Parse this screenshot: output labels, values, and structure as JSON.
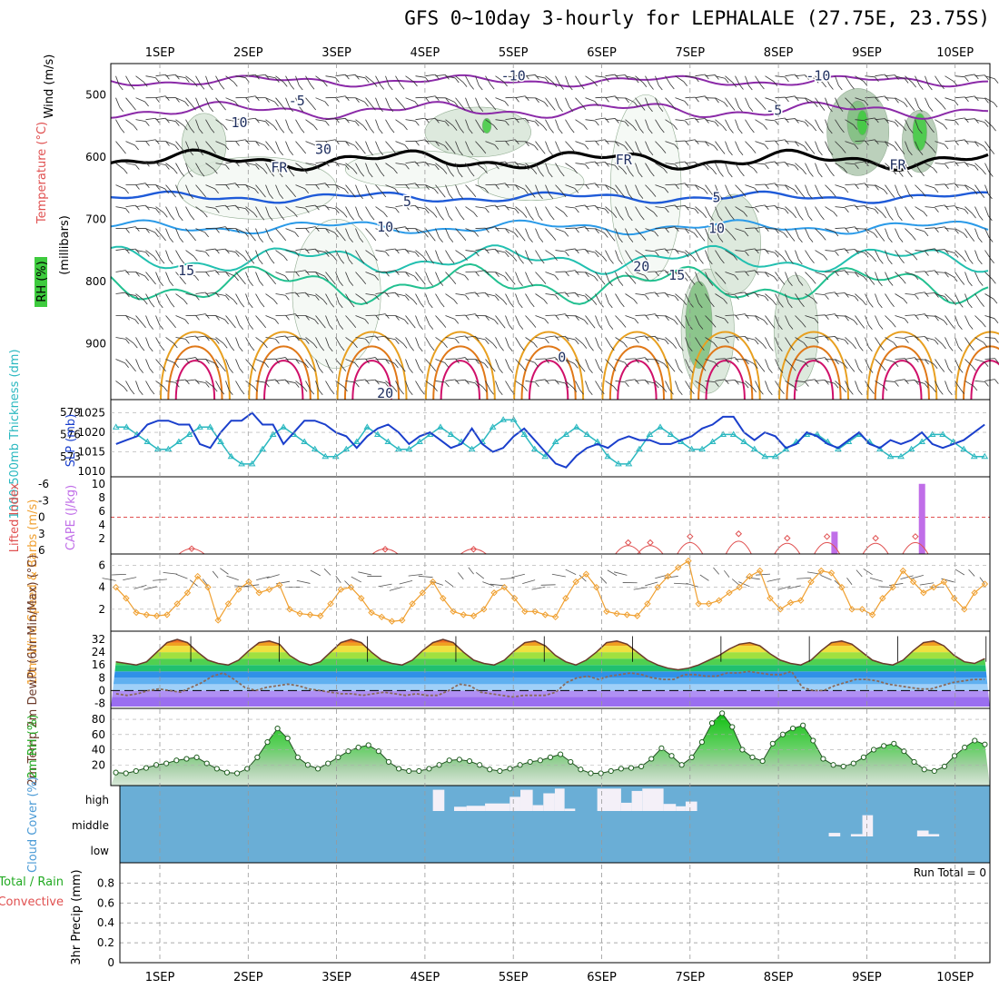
{
  "title": "GFS 0~10day 3-hourly for LEPHALALE (27.75E, 23.75S)",
  "dates": [
    "1SEP",
    "2SEP",
    "3SEP",
    "4SEP",
    "5SEP",
    "6SEP",
    "7SEP",
    "8SEP",
    "9SEP",
    "10SEP"
  ],
  "colors": {
    "sep_line": "#000000",
    "grid": "#aaaaaa",
    "slp": "#1a3fcc",
    "thickness": "#2ab8c0",
    "lifted": "#e05050",
    "cape": "#c06ee8",
    "wind10": "#f0a030",
    "rh": "#22aa22",
    "cloud_bg": "#6aaed6",
    "cloud_bar": "#f4f0f8",
    "temp_line": "#6b3a2a",
    "dewpt": "#8a6a5a"
  },
  "chart_data": [
    {
      "type": "contour",
      "panel": "upper-air",
      "ylabel_parts": [
        "Wind (m/s)",
        "Temperature (°C)",
        "(millibars)"
      ],
      "rh_label": "RH (%)",
      "yticks": [
        500,
        600,
        700,
        800,
        900
      ],
      "ylim": [
        1000,
        450
      ],
      "contour_labels": [
        {
          "text": "-10",
          "x": 4.0,
          "p": 470
        },
        {
          "text": "-10",
          "x": 7.45,
          "p": 470
        },
        {
          "text": "-5",
          "x": 1.55,
          "p": 510
        },
        {
          "text": "-5",
          "x": 6.95,
          "p": 525
        },
        {
          "text": "FR",
          "x": 1.35,
          "p": 617
        },
        {
          "text": "FR",
          "x": 5.25,
          "p": 605
        },
        {
          "text": "FR",
          "x": 8.35,
          "p": 613
        },
        {
          "text": "5",
          "x": 2.8,
          "p": 672
        },
        {
          "text": "5",
          "x": 6.3,
          "p": 665
        },
        {
          "text": "10",
          "x": 2.55,
          "p": 713
        },
        {
          "text": "10",
          "x": 6.3,
          "p": 715
        },
        {
          "text": "15",
          "x": 0.3,
          "p": 783
        },
        {
          "text": "15",
          "x": 5.85,
          "p": 790
        },
        {
          "text": "20",
          "x": 5.45,
          "p": 776
        },
        {
          "text": "20",
          "x": 2.55,
          "p": 980
        },
        {
          "text": "0",
          "x": 4.55,
          "p": 922
        },
        {
          "text": "10",
          "x": 0.9,
          "p": 545
        },
        {
          "text": "30",
          "x": 1.85,
          "p": 588
        }
      ],
      "rh_shades": [
        "#f4f8f4",
        "#d8e6d8",
        "#b0c8b0",
        "#7fbf7f",
        "#3ecb3e"
      ]
    },
    {
      "type": "line",
      "panel": "slp-thickness",
      "left_label": "1000-500mb Thickness (dm)",
      "right_label": "SLP (mb)",
      "left_ticks": [
        573,
        576,
        579
      ],
      "right_ticks": [
        1010,
        1015,
        1020,
        1025
      ],
      "series": [
        {
          "name": "SLP",
          "axis": "right",
          "values": [
            1017,
            1018,
            1019,
            1022,
            1023,
            1023,
            1022,
            1022,
            1017,
            1016,
            1020,
            1023,
            1023,
            1025,
            1022,
            1022,
            1017,
            1020,
            1023,
            1023,
            1022,
            1020,
            1019,
            1016,
            1019,
            1021,
            1022,
            1020,
            1017,
            1019,
            1020,
            1018,
            1016,
            1017,
            1021,
            1017,
            1015,
            1016,
            1019,
            1021,
            1018,
            1015,
            1012,
            1011,
            1014,
            1016,
            1017,
            1016,
            1018,
            1019,
            1018,
            1018,
            1017,
            1017,
            1018,
            1019,
            1021,
            1022,
            1024,
            1024,
            1020,
            1018,
            1020,
            1019,
            1016,
            1017,
            1020,
            1019,
            1017,
            1016,
            1018,
            1020,
            1017,
            1016,
            1018,
            1017,
            1018,
            1020,
            1017,
            1016,
            1017,
            1018,
            1020,
            1022
          ]
        },
        {
          "name": "Thickness",
          "axis": "left",
          "values": [
            577,
            577,
            576,
            575,
            574,
            574,
            575,
            576,
            577,
            577,
            575,
            573,
            572,
            572,
            574,
            576,
            577,
            576,
            575,
            574,
            573,
            573,
            574,
            575,
            577,
            576,
            575,
            574,
            574,
            575,
            576,
            577,
            576,
            575,
            574,
            575,
            577,
            578,
            578,
            576,
            574,
            573,
            575,
            576,
            577,
            576,
            575,
            573,
            572,
            572,
            574,
            576,
            577,
            576,
            575,
            574,
            574,
            575,
            576,
            576,
            575,
            574,
            573,
            573,
            574,
            575,
            576,
            576,
            575,
            574,
            575,
            576,
            575,
            574,
            573,
            573,
            574,
            575,
            576,
            576,
            575,
            574,
            573,
            573
          ]
        }
      ]
    },
    {
      "type": "bar",
      "panel": "lifted-cape",
      "left_label": "Lifted Index",
      "right_label": "CAPE (J/kg)",
      "left_ticks": [
        "-6",
        "-3",
        "0",
        "3",
        "6"
      ],
      "right_ticks": [
        2,
        4,
        6,
        8,
        10
      ],
      "cape_bars": [
        {
          "x": 8.63,
          "value": 3
        },
        {
          "x": 9.62,
          "value": 10
        }
      ],
      "lifted_index": [
        {
          "x": 1.36,
          "value": 5.7
        },
        {
          "x": 3.55,
          "value": 5.8
        },
        {
          "x": 4.55,
          "value": 5.8
        },
        {
          "x": 6.3,
          "value": 4.6
        },
        {
          "x": 6.55,
          "value": 4.6
        },
        {
          "x": 7.0,
          "value": 3.5
        },
        {
          "x": 7.55,
          "value": 3.0
        },
        {
          "x": 8.1,
          "value": 3.8
        },
        {
          "x": 8.55,
          "value": 3.5
        },
        {
          "x": 9.1,
          "value": 3.8
        },
        {
          "x": 9.55,
          "value": 3.5
        }
      ]
    },
    {
      "type": "line",
      "panel": "wind10m",
      "ylabel": "10m Wind Speed & Barbs (m/s)",
      "yticks": [
        2,
        4,
        6
      ],
      "values": [
        4.0,
        3.0,
        1.7,
        1.5,
        1.4,
        1.5,
        2.5,
        3.5,
        5.0,
        4.0,
        1.0,
        2.5,
        3.8,
        4.5,
        3.5,
        3.8,
        4.2,
        2.0,
        1.6,
        1.5,
        1.4,
        2.5,
        3.8,
        4.0,
        3.0,
        1.7,
        1.3,
        0.9,
        1.0,
        2.5,
        3.5,
        4.5,
        3.0,
        1.8,
        1.5,
        1.4,
        2.0,
        3.5,
        4.0,
        3.0,
        1.8,
        1.8,
        1.5,
        1.3,
        3.0,
        4.5,
        5.2,
        4.0,
        1.8,
        1.6,
        1.5,
        1.4,
        2.5,
        4.0,
        5.0,
        5.8,
        6.4,
        2.5,
        2.5,
        2.8,
        3.5,
        4.0,
        5.0,
        5.5,
        3.0,
        2.0,
        2.6,
        2.8,
        4.5,
        5.5,
        5.3,
        4.0,
        2.0,
        2.0,
        1.5,
        3.0,
        4.0,
        5.5,
        4.5,
        3.5,
        4.0,
        4.5,
        3.0,
        2.0,
        3.5,
        4.3
      ]
    },
    {
      "type": "area",
      "panel": "temp",
      "ylabel": "2m Temp 2m DewPt (6hr Min/Max) (°C)",
      "yticks": [
        -8,
        0,
        8,
        16,
        24,
        32
      ],
      "temp": [
        18,
        17,
        16,
        18,
        24,
        30,
        32,
        30,
        24,
        19,
        17,
        16,
        19,
        25,
        30,
        31,
        29,
        22,
        18,
        16,
        18,
        24,
        30,
        32,
        30,
        24,
        19,
        17,
        16,
        19,
        25,
        30,
        32,
        30,
        24,
        19,
        17,
        16,
        19,
        25,
        30,
        31,
        28,
        22,
        18,
        16,
        19,
        24,
        30,
        31,
        29,
        24,
        19,
        16,
        14,
        13,
        14,
        16,
        19,
        22,
        26,
        29,
        30,
        28,
        23,
        19,
        17,
        16,
        19,
        25,
        30,
        31,
        29,
        24,
        19,
        17,
        16,
        19,
        25,
        30,
        31,
        28,
        22,
        18,
        17,
        20
      ],
      "dewpt": [
        -2,
        -3,
        -2,
        0,
        1,
        0,
        -1,
        2,
        5,
        9,
        11,
        7,
        2,
        0,
        2,
        3,
        4,
        3,
        1,
        0,
        -1,
        -2,
        -2,
        -3,
        -2,
        -1,
        -2,
        -3,
        -2,
        -3,
        -3,
        0,
        4,
        3,
        -1,
        -2,
        -3,
        -4,
        -3,
        -3,
        -3,
        -1,
        5,
        8,
        9,
        7,
        9,
        10,
        11,
        10,
        8,
        7,
        7,
        10,
        10,
        9,
        9,
        11,
        11,
        12,
        11,
        10,
        10,
        12,
        2,
        0,
        0,
        3,
        5,
        7,
        7,
        6,
        4,
        3,
        2,
        1,
        1,
        3,
        5,
        6,
        7,
        7
      ]
    },
    {
      "type": "area",
      "panel": "rh",
      "ylabel": "2m RH (%)",
      "yticks": [
        20,
        40,
        60,
        80
      ],
      "values": [
        10,
        9,
        12,
        16,
        20,
        22,
        26,
        28,
        30,
        22,
        15,
        10,
        9,
        15,
        30,
        50,
        68,
        55,
        30,
        20,
        15,
        22,
        30,
        38,
        43,
        46,
        38,
        24,
        15,
        12,
        12,
        15,
        20,
        26,
        27,
        25,
        20,
        14,
        12,
        15,
        20,
        24,
        26,
        30,
        34,
        24,
        14,
        9,
        9,
        12,
        15,
        16,
        18,
        28,
        42,
        32,
        20,
        30,
        50,
        75,
        88,
        70,
        40,
        30,
        25,
        48,
        60,
        68,
        72,
        52,
        28,
        20,
        18,
        22,
        30,
        40,
        45,
        48,
        38,
        24,
        14,
        12,
        18,
        32,
        43,
        52,
        47
      ]
    },
    {
      "type": "bar",
      "panel": "cloud",
      "ylabel": "Cloud Cover (%)",
      "yticks": [
        "high",
        "middle",
        "low"
      ],
      "high": [
        {
          "x0": 4.09,
          "x1": 4.22,
          "v": 0.9
        },
        {
          "x0": 4.33,
          "x1": 4.47,
          "v": 0.18
        },
        {
          "x0": 4.47,
          "x1": 4.68,
          "v": 0.22
        },
        {
          "x0": 4.68,
          "x1": 4.96,
          "v": 0.32
        },
        {
          "x0": 4.96,
          "x1": 5.08,
          "v": 0.6
        },
        {
          "x0": 5.08,
          "x1": 5.22,
          "v": 0.9
        },
        {
          "x0": 5.22,
          "x1": 5.34,
          "v": 0.25
        },
        {
          "x0": 5.34,
          "x1": 5.47,
          "v": 0.75
        },
        {
          "x0": 5.47,
          "x1": 5.58,
          "v": 0.95
        },
        {
          "x0": 5.58,
          "x1": 5.7,
          "v": 0.1
        },
        {
          "x0": 5.95,
          "x1": 6.22,
          "v": 0.95
        },
        {
          "x0": 6.22,
          "x1": 6.34,
          "v": 0.35
        },
        {
          "x0": 6.34,
          "x1": 6.46,
          "v": 0.85
        },
        {
          "x0": 6.46,
          "x1": 6.7,
          "v": 0.95
        },
        {
          "x0": 6.7,
          "x1": 6.84,
          "v": 0.3
        },
        {
          "x0": 6.84,
          "x1": 6.95,
          "v": 0.2
        },
        {
          "x0": 6.95,
          "x1": 7.08,
          "v": 0.4
        }
      ],
      "middle": [
        {
          "x0": 8.57,
          "x1": 8.7,
          "v": 0.15
        },
        {
          "x0": 8.82,
          "x1": 8.95,
          "v": 0.1
        },
        {
          "x0": 8.95,
          "x1": 9.07,
          "v": 0.9
        },
        {
          "x0": 9.57,
          "x1": 9.7,
          "v": 0.25
        },
        {
          "x0": 9.7,
          "x1": 9.82,
          "v": 0.1
        }
      ]
    },
    {
      "type": "bar",
      "panel": "precip",
      "ylabel": "3hr Precip (mm)",
      "side_label_total": "Total / Rain",
      "side_label_conv": "Convective",
      "yticks": [
        0,
        0.2,
        0.4,
        0.6,
        0.8
      ],
      "run_total": "Run Total = 0",
      "values": []
    }
  ]
}
